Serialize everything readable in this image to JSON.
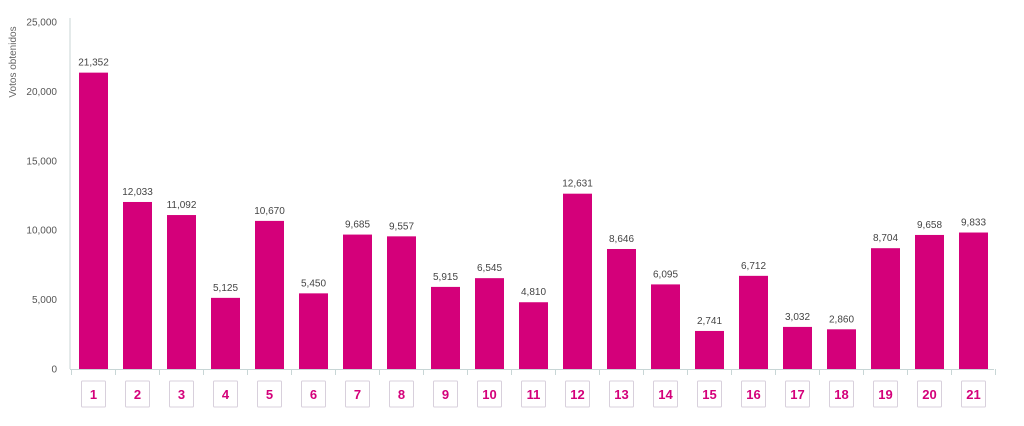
{
  "chart_data": {
    "type": "bar",
    "ylabel": "Votos obtenidos",
    "ylim": [
      0,
      25000
    ],
    "yticks": [
      0,
      5000,
      10000,
      15000,
      20000,
      25000
    ],
    "ytick_labels": [
      "0",
      "5,000",
      "10,000",
      "15,000",
      "20,000",
      "25,000"
    ],
    "grid": false,
    "categories": [
      "1",
      "2",
      "3",
      "4",
      "5",
      "6",
      "7",
      "8",
      "9",
      "10",
      "11",
      "12",
      "13",
      "14",
      "15",
      "16",
      "17",
      "18",
      "19",
      "20",
      "21"
    ],
    "values": [
      21352,
      12033,
      11092,
      5125,
      10670,
      5450,
      9685,
      9557,
      5915,
      6545,
      4810,
      12631,
      8646,
      6095,
      2741,
      6712,
      3032,
      2860,
      8704,
      9658,
      9833
    ],
    "value_labels": [
      "21,352",
      "12,033",
      "11,092",
      "5,125",
      "10,670",
      "5,450",
      "9,685",
      "9,557",
      "5,915",
      "6,545",
      "4,810",
      "12,631",
      "8,646",
      "6,095",
      "2,741",
      "6,712",
      "3,032",
      "2,860",
      "8,704",
      "9,658",
      "9,833"
    ],
    "bar_color": "#d4007a",
    "category_label_color": "#d4007a",
    "axis_color": "#c8d6d6"
  }
}
